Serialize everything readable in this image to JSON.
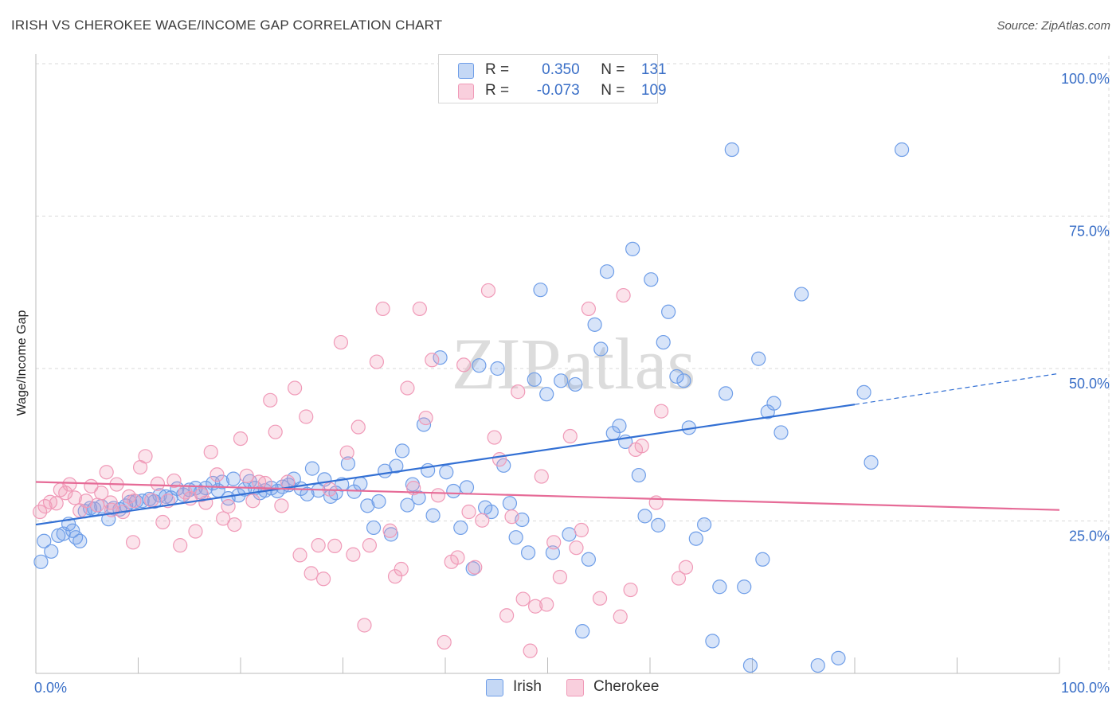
{
  "title": "IRISH VS CHEROKEE WAGE/INCOME GAP CORRELATION CHART",
  "source": "Source: ZipAtlas.com",
  "watermark": "ZIPatlas",
  "legend_top": {
    "rows": [
      {
        "r_label": "R =",
        "r_value": "0.350",
        "n_label": "N =",
        "n_value": "131"
      },
      {
        "r_label": "R =",
        "r_value": "-0.073",
        "n_label": "N =",
        "n_value": "109"
      }
    ]
  },
  "colors": {
    "irish": "#6f9ee8",
    "irish_line": "#3370d4",
    "cherokee": "#f09ab8",
    "cherokee_line": "#e66b97",
    "tick_label": "#3a6fc7",
    "grid": "#d9d9d9"
  },
  "chart_data": {
    "type": "scatter",
    "title": "IRISH VS CHEROKEE WAGE/INCOME GAP CORRELATION CHART",
    "xlabel": "",
    "ylabel": "Wage/Income Gap",
    "xlim": [
      0,
      100
    ],
    "ylim": [
      0,
      100
    ],
    "x_tick_labels": [
      "0.0%",
      "100.0%"
    ],
    "y_tick_labels": [
      "25.0%",
      "50.0%",
      "75.0%",
      "100.0%"
    ],
    "y_ticks": [
      25,
      50,
      75,
      100
    ],
    "grid": true,
    "legend_position": "bottom",
    "series": [
      {
        "name": "Irish",
        "r": 0.35,
        "n": 131,
        "trend": {
          "x0": 0,
          "y0": 24.4,
          "x1": 80,
          "y1": 44.1,
          "dashed_to_x": 100,
          "dashed_to_y": 49.2
        },
        "points": [
          [
            0.5,
            18.3
          ],
          [
            0.8,
            21.7
          ],
          [
            1.5,
            20.0
          ],
          [
            2.2,
            22.6
          ],
          [
            2.7,
            22.9
          ],
          [
            3.2,
            24.5
          ],
          [
            3.6,
            23.4
          ],
          [
            3.9,
            22.3
          ],
          [
            4.3,
            21.7
          ],
          [
            4.8,
            26.6
          ],
          [
            5.3,
            27.1
          ],
          [
            5.7,
            27.0
          ],
          [
            6.4,
            27.4
          ],
          [
            7.1,
            25.3
          ],
          [
            7.6,
            27.1
          ],
          [
            8.2,
            26.9
          ],
          [
            8.8,
            27.5
          ],
          [
            9.2,
            28.1
          ],
          [
            9.8,
            28.2
          ],
          [
            10.4,
            28.3
          ],
          [
            11.1,
            28.6
          ],
          [
            11.6,
            28.2
          ],
          [
            12.1,
            29.2
          ],
          [
            12.7,
            29.0
          ],
          [
            13.2,
            28.8
          ],
          [
            13.8,
            30.3
          ],
          [
            14.4,
            29.3
          ],
          [
            15.0,
            30.1
          ],
          [
            15.6,
            30.4
          ],
          [
            16.1,
            29.7
          ],
          [
            16.6,
            30.4
          ],
          [
            17.3,
            31.2
          ],
          [
            17.8,
            30.0
          ],
          [
            18.2,
            31.4
          ],
          [
            18.8,
            28.7
          ],
          [
            19.3,
            31.9
          ],
          [
            19.8,
            29.2
          ],
          [
            20.4,
            30.2
          ],
          [
            20.9,
            31.5
          ],
          [
            21.4,
            30.4
          ],
          [
            21.9,
            29.6
          ],
          [
            22.4,
            30.0
          ],
          [
            23.0,
            30.4
          ],
          [
            23.6,
            29.9
          ],
          [
            24.1,
            30.6
          ],
          [
            24.7,
            30.9
          ],
          [
            25.2,
            31.9
          ],
          [
            25.9,
            30.3
          ],
          [
            26.5,
            29.4
          ],
          [
            27.0,
            33.6
          ],
          [
            27.6,
            30.0
          ],
          [
            28.2,
            31.8
          ],
          [
            28.8,
            29.0
          ],
          [
            29.3,
            29.6
          ],
          [
            29.9,
            31.0
          ],
          [
            30.5,
            34.4
          ],
          [
            31.1,
            29.8
          ],
          [
            31.7,
            31.1
          ],
          [
            32.4,
            27.5
          ],
          [
            33.0,
            23.9
          ],
          [
            33.5,
            28.2
          ],
          [
            34.1,
            33.2
          ],
          [
            34.7,
            22.8
          ],
          [
            35.2,
            34.0
          ],
          [
            35.8,
            36.5
          ],
          [
            36.3,
            27.6
          ],
          [
            36.8,
            31.0
          ],
          [
            37.4,
            28.8
          ],
          [
            37.9,
            40.8
          ],
          [
            38.3,
            33.3
          ],
          [
            38.8,
            25.9
          ],
          [
            39.5,
            51.8
          ],
          [
            40.1,
            33.0
          ],
          [
            40.8,
            29.9
          ],
          [
            41.5,
            23.9
          ],
          [
            42.1,
            30.5
          ],
          [
            42.7,
            17.2
          ],
          [
            43.3,
            50.5
          ],
          [
            43.9,
            27.2
          ],
          [
            44.5,
            26.5
          ],
          [
            45.1,
            50.0
          ],
          [
            45.7,
            34.1
          ],
          [
            46.3,
            27.9
          ],
          [
            46.9,
            22.3
          ],
          [
            47.5,
            25.2
          ],
          [
            48.1,
            19.8
          ],
          [
            48.7,
            48.2
          ],
          [
            49.3,
            62.9
          ],
          [
            49.9,
            45.8
          ],
          [
            50.5,
            19.8
          ],
          [
            51.3,
            48.0
          ],
          [
            52.1,
            22.8
          ],
          [
            52.7,
            47.4
          ],
          [
            53.4,
            6.9
          ],
          [
            54.0,
            18.7
          ],
          [
            54.6,
            57.2
          ],
          [
            55.2,
            53.2
          ],
          [
            55.8,
            65.9
          ],
          [
            56.4,
            39.4
          ],
          [
            57.0,
            40.6
          ],
          [
            57.6,
            38.0
          ],
          [
            58.3,
            69.6
          ],
          [
            58.9,
            32.5
          ],
          [
            59.5,
            25.8
          ],
          [
            60.1,
            64.6
          ],
          [
            60.8,
            24.3
          ],
          [
            61.3,
            54.3
          ],
          [
            61.8,
            59.3
          ],
          [
            62.6,
            48.7
          ],
          [
            63.3,
            48.0
          ],
          [
            63.8,
            40.3
          ],
          [
            64.5,
            22.1
          ],
          [
            65.3,
            24.4
          ],
          [
            66.1,
            5.3
          ],
          [
            66.8,
            14.2
          ],
          [
            67.4,
            45.9
          ],
          [
            68.0,
            85.9
          ],
          [
            69.2,
            14.2
          ],
          [
            69.8,
            1.3
          ],
          [
            70.6,
            51.6
          ],
          [
            71.0,
            18.7
          ],
          [
            71.5,
            42.9
          ],
          [
            72.1,
            44.3
          ],
          [
            72.8,
            39.5
          ],
          [
            74.8,
            62.2
          ],
          [
            76.4,
            1.3
          ],
          [
            78.4,
            2.5
          ],
          [
            80.9,
            46.1
          ],
          [
            81.6,
            34.6
          ],
          [
            84.6,
            85.9
          ]
        ]
      },
      {
        "name": "Cherokee",
        "r": -0.073,
        "n": 109,
        "trend": {
          "x0": 0,
          "y0": 31.4,
          "x1": 100,
          "y1": 26.8
        },
        "points": [
          [
            0.4,
            26.5
          ],
          [
            0.9,
            27.4
          ],
          [
            1.4,
            28.1
          ],
          [
            2.0,
            27.9
          ],
          [
            2.4,
            30.1
          ],
          [
            2.9,
            29.6
          ],
          [
            3.3,
            31.0
          ],
          [
            3.8,
            28.8
          ],
          [
            4.3,
            26.7
          ],
          [
            4.9,
            28.3
          ],
          [
            5.4,
            30.7
          ],
          [
            6.0,
            27.6
          ],
          [
            6.4,
            29.6
          ],
          [
            6.9,
            33.0
          ],
          [
            7.4,
            26.8
          ],
          [
            7.9,
            31.0
          ],
          [
            8.5,
            26.5
          ],
          [
            9.1,
            29.0
          ],
          [
            9.6,
            28.3
          ],
          [
            10.2,
            33.8
          ],
          [
            10.7,
            35.6
          ],
          [
            11.3,
            28.4
          ],
          [
            11.9,
            31.1
          ],
          [
            12.4,
            24.8
          ],
          [
            12.9,
            28.3
          ],
          [
            13.5,
            31.6
          ],
          [
            14.1,
            21.0
          ],
          [
            14.6,
            29.7
          ],
          [
            15.1,
            28.7
          ],
          [
            15.6,
            23.3
          ],
          [
            16.2,
            29.3
          ],
          [
            16.6,
            28.0
          ],
          [
            17.1,
            36.3
          ],
          [
            17.7,
            32.6
          ],
          [
            18.3,
            25.4
          ],
          [
            18.8,
            27.4
          ],
          [
            19.4,
            24.4
          ],
          [
            20.0,
            38.5
          ],
          [
            20.6,
            32.4
          ],
          [
            21.2,
            28.3
          ],
          [
            21.8,
            31.4
          ],
          [
            22.4,
            31.2
          ],
          [
            22.9,
            44.8
          ],
          [
            23.4,
            39.6
          ],
          [
            24.0,
            27.5
          ],
          [
            24.6,
            31.4
          ],
          [
            25.3,
            46.8
          ],
          [
            25.8,
            19.4
          ],
          [
            26.4,
            42.1
          ],
          [
            26.9,
            16.4
          ],
          [
            27.6,
            21.0
          ],
          [
            28.1,
            15.5
          ],
          [
            28.7,
            30.2
          ],
          [
            29.2,
            20.9
          ],
          [
            29.8,
            54.3
          ],
          [
            30.4,
            36.2
          ],
          [
            31.0,
            19.5
          ],
          [
            31.5,
            40.4
          ],
          [
            32.1,
            7.9
          ],
          [
            32.6,
            21.0
          ],
          [
            33.3,
            51.1
          ],
          [
            33.9,
            59.8
          ],
          [
            34.6,
            23.4
          ],
          [
            35.1,
            15.9
          ],
          [
            35.7,
            17.1
          ],
          [
            36.3,
            46.8
          ],
          [
            36.9,
            30.4
          ],
          [
            37.5,
            59.8
          ],
          [
            38.1,
            41.9
          ],
          [
            38.7,
            51.4
          ],
          [
            39.3,
            29.2
          ],
          [
            39.9,
            5.1
          ],
          [
            40.6,
            18.3
          ],
          [
            41.2,
            19.0
          ],
          [
            41.8,
            50.6
          ],
          [
            42.3,
            26.5
          ],
          [
            42.9,
            17.4
          ],
          [
            43.6,
            25.1
          ],
          [
            44.2,
            62.8
          ],
          [
            44.8,
            38.7
          ],
          [
            45.3,
            35.1
          ],
          [
            46.0,
            9.5
          ],
          [
            46.5,
            25.7
          ],
          [
            47.1,
            46.2
          ],
          [
            47.6,
            12.2
          ],
          [
            48.3,
            3.7
          ],
          [
            48.8,
            11.0
          ],
          [
            49.4,
            32.3
          ],
          [
            49.9,
            11.3
          ],
          [
            50.6,
            21.5
          ],
          [
            51.2,
            15.8
          ],
          [
            52.2,
            38.9
          ],
          [
            52.8,
            20.6
          ],
          [
            53.3,
            23.5
          ],
          [
            54.0,
            59.8
          ],
          [
            55.1,
            12.3
          ],
          [
            57.1,
            9.3
          ],
          [
            57.4,
            62.0
          ],
          [
            58.1,
            13.7
          ],
          [
            58.6,
            36.7
          ],
          [
            59.2,
            37.3
          ],
          [
            60.6,
            28.0
          ],
          [
            61.1,
            43.0
          ],
          [
            62.8,
            15.6
          ],
          [
            63.5,
            17.4
          ],
          [
            9.5,
            21.5
          ],
          [
            7.3,
            28.0
          ]
        ]
      }
    ]
  },
  "bottom_legend": [
    {
      "label": "Irish"
    },
    {
      "label": "Cherokee"
    }
  ]
}
